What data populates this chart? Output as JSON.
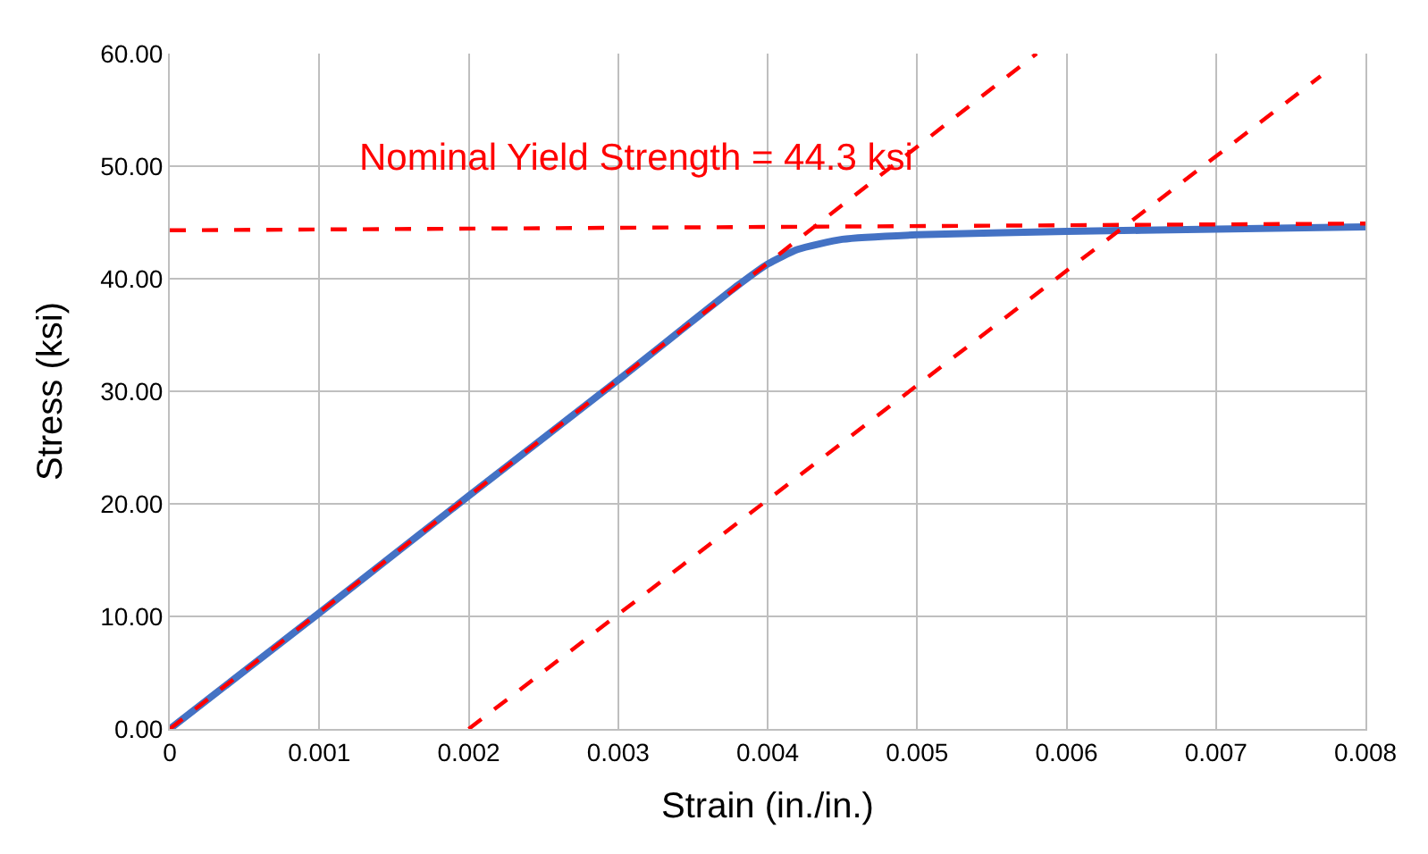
{
  "chart_data": {
    "type": "line",
    "xlabel": "Strain (in./in.)",
    "ylabel": "Stress (ksi)",
    "xlim": [
      0,
      0.008
    ],
    "ylim": [
      0,
      60
    ],
    "xticks": [
      0,
      0.001,
      0.002,
      0.003,
      0.004,
      0.005,
      0.006,
      0.007,
      0.008
    ],
    "yticks": [
      {
        "value": 0,
        "label": "0.00"
      },
      {
        "value": 10,
        "label": "10.00"
      },
      {
        "value": 20,
        "label": "20.00"
      },
      {
        "value": 30,
        "label": "30.00"
      },
      {
        "value": 40,
        "label": "40.00"
      },
      {
        "value": 50,
        "label": "50.00"
      },
      {
        "value": 60,
        "label": "60.00"
      }
    ],
    "grid": true,
    "marker": "none",
    "annotations": [
      "Nominal Yield Strength = 44.3 ksi"
    ],
    "series": [
      {
        "color": "#4472c4",
        "line_style": "solid",
        "x": [
          0,
          0.001,
          0.002,
          0.003,
          0.0038,
          0.004,
          0.0042,
          0.0045,
          0.005,
          0.006,
          0.007,
          0.008
        ],
        "values": [
          0,
          10.3,
          20.7,
          31.0,
          39.4,
          41.3,
          42.6,
          43.5,
          43.9,
          44.2,
          44.4,
          44.6
        ]
      },
      {
        "color": "#ff0000",
        "line_style": "dashed",
        "x": [
          0,
          0.0058
        ],
        "values": [
          0,
          60
        ]
      },
      {
        "color": "#ff0000",
        "line_style": "dashed",
        "x": [
          0.002,
          0.0077
        ],
        "values": [
          0,
          58
        ]
      },
      {
        "color": "#ff0000",
        "line_style": "dashed",
        "x": [
          0,
          0.008
        ],
        "values": [
          44.3,
          44.9
        ]
      }
    ]
  }
}
